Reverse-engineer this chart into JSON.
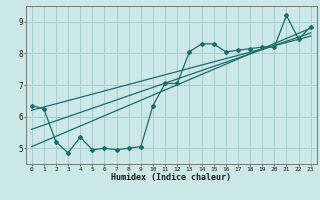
{
  "xlabel": "Humidex (Indice chaleur)",
  "xlim": [
    -0.5,
    23.5
  ],
  "ylim": [
    4.5,
    9.5
  ],
  "xticks": [
    0,
    1,
    2,
    3,
    4,
    5,
    6,
    7,
    8,
    9,
    10,
    11,
    12,
    13,
    14,
    15,
    16,
    17,
    18,
    19,
    20,
    21,
    22,
    23
  ],
  "yticks": [
    5,
    6,
    7,
    8,
    9
  ],
  "bg_color": "#cce8e8",
  "line_color": "#1a6e6a",
  "grid_color": "#aacccc",
  "line_zigzag_x": [
    0,
    1,
    2,
    3,
    4,
    5,
    6,
    7,
    8,
    9,
    10,
    11,
    12,
    13,
    14,
    15,
    16,
    17,
    18,
    19,
    20,
    21,
    22,
    23
  ],
  "line_zigzag_y": [
    6.35,
    6.25,
    5.2,
    4.85,
    5.35,
    4.95,
    5.0,
    4.95,
    5.0,
    5.05,
    6.35,
    7.05,
    7.05,
    8.05,
    8.3,
    8.3,
    8.05,
    8.1,
    8.15,
    8.2,
    8.2,
    9.2,
    8.45,
    8.85
  ],
  "line_trend1_x": [
    0,
    23
  ],
  "line_trend1_y": [
    6.2,
    8.55
  ],
  "line_trend2_x": [
    0,
    23
  ],
  "line_trend2_y": [
    5.05,
    8.8
  ],
  "line_trend3_x": [
    0,
    23
  ],
  "line_trend3_y": [
    5.6,
    8.65
  ]
}
